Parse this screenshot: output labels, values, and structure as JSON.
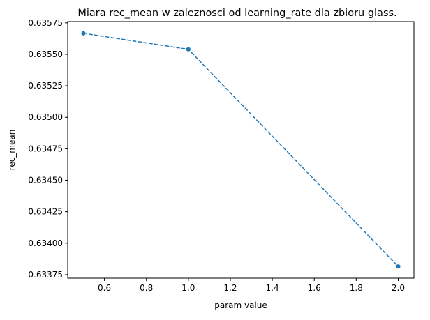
{
  "chart_data": {
    "type": "line",
    "title": "Miara rec_mean w zaleznosci od learning_rate dla zbioru glass.",
    "xlabel": "param value",
    "ylabel": "rec_mean",
    "x": [
      0.5,
      1.0,
      2.0
    ],
    "series": [
      {
        "values": [
          0.635667,
          0.63554,
          0.633815
        ],
        "color": "#1f77b4",
        "line_style": "dashed",
        "marker": "circle"
      }
    ],
    "xlim": [
      0.425,
      2.075
    ],
    "ylim": [
      0.633722,
      0.63576
    ],
    "x_ticks": [
      0.6,
      0.8,
      1.0,
      1.2,
      1.4,
      1.6,
      1.8,
      2.0
    ],
    "x_tick_labels": [
      "0.6",
      "0.8",
      "1.0",
      "1.2",
      "1.4",
      "1.6",
      "1.8",
      "2.0"
    ],
    "y_ticks": [
      0.63375,
      0.634,
      0.63425,
      0.6345,
      0.63475,
      0.635,
      0.63525,
      0.6355,
      0.63575
    ],
    "y_tick_labels": [
      "0.63375",
      "0.63400",
      "0.63425",
      "0.63450",
      "0.63475",
      "0.63500",
      "0.63525",
      "0.63550",
      "0.63575"
    ],
    "grid": false,
    "legend": false
  }
}
